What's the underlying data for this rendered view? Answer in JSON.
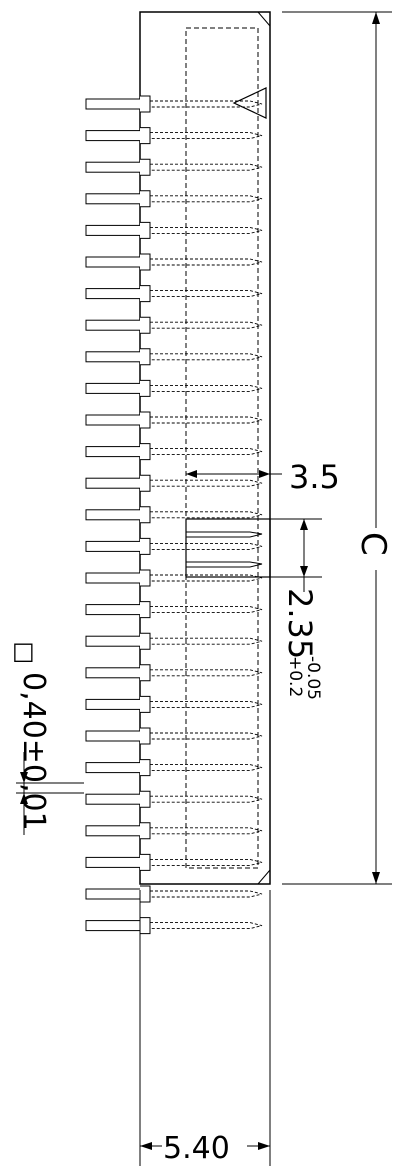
{
  "diagram": {
    "pin_count": 27,
    "dimensions": {
      "depth": "3.5",
      "pitch_main": "2.35",
      "pitch_tol_plus": "+0.2",
      "pitch_tol_minus": "-0.05",
      "overall_length": "C",
      "width": "5.40",
      "pin_size": "0,40±0,01",
      "square_symbol": "□"
    },
    "marker": "pin-1-triangle",
    "colors": {
      "line": "#000000",
      "background": "#ffffff"
    }
  }
}
